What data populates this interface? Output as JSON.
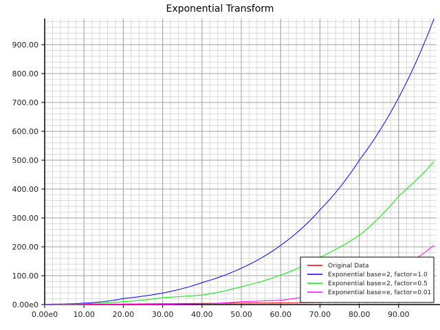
{
  "chart_data": {
    "type": "line",
    "title": "Exponential Transform",
    "xlabel": "",
    "ylabel": "",
    "xlim": [
      0,
      99
    ],
    "ylim": [
      0,
      990
    ],
    "x_ticks": [
      "0.00e0",
      "10.00",
      "20.00",
      "30.00",
      "40.00",
      "50.00",
      "60.00",
      "70.00",
      "80.00",
      "90.00"
    ],
    "y_ticks": [
      "0.00e0",
      "100.00",
      "200.00",
      "300.00",
      "400.00",
      "500.00",
      "600.00",
      "700.00",
      "800.00",
      "900.00"
    ],
    "grid": true,
    "legend_position": "lower right",
    "x": [
      0,
      10,
      20,
      30,
      40,
      50,
      60,
      70,
      80,
      90,
      99
    ],
    "series": [
      {
        "name": "Original Data",
        "color": "#ff0000",
        "values": [
          0,
          1,
          2,
          3,
          4,
          5,
          6,
          7,
          8,
          9,
          9.9
        ]
      },
      {
        "name": "Exponential base=2, factor=1.0",
        "color": "#0000ff",
        "values": [
          1,
          5,
          21,
          40,
          76,
          126,
          205,
          328,
          500,
          716,
          990
        ]
      },
      {
        "name": "Exponential base=2, factor=0.5",
        "color": "#00ee00",
        "values": [
          0.5,
          3,
          10,
          24,
          33,
          62,
          102,
          164,
          240,
          376,
          495
        ]
      },
      {
        "name": "Exponential base=e, factor=0.01",
        "color": "#ff00ff",
        "values": [
          0,
          0.2,
          0.5,
          1,
          3,
          10,
          15,
          40,
          80,
          126,
          205
        ]
      }
    ]
  }
}
